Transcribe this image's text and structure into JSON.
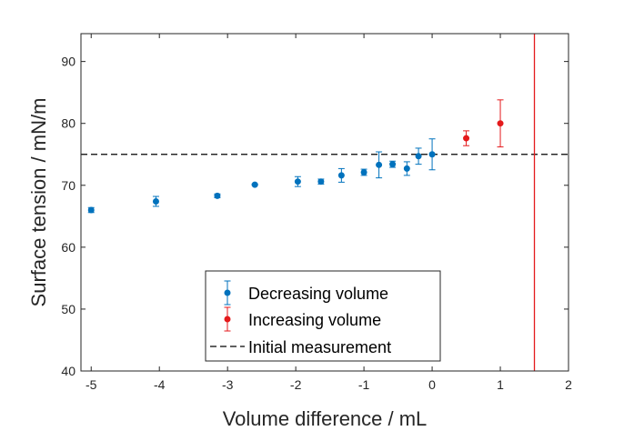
{
  "chart_data": {
    "type": "scatter",
    "xlabel": "Volume difference / mL",
    "ylabel": "Surface tension / mN/m",
    "xlim": [
      -5.15,
      2
    ],
    "ylim": [
      40,
      94.5
    ],
    "xticks": [
      -5,
      -4,
      -3,
      -2,
      -1,
      0,
      1,
      2
    ],
    "yticks": [
      40,
      50,
      60,
      70,
      80,
      90
    ],
    "grid": false,
    "legend_position": "lower-center",
    "series": [
      {
        "name": "Decreasing volume",
        "color": "#0072BD",
        "marker": "circle",
        "errorbars": true,
        "points": [
          {
            "x": -5.0,
            "y": 66.0,
            "err": 0.4
          },
          {
            "x": -4.05,
            "y": 67.4,
            "err": 0.8
          },
          {
            "x": -3.15,
            "y": 68.3,
            "err": 0.3
          },
          {
            "x": -2.6,
            "y": 70.1,
            "err": 0.1
          },
          {
            "x": -1.97,
            "y": 70.6,
            "err": 0.8
          },
          {
            "x": -1.63,
            "y": 70.6,
            "err": 0.4
          },
          {
            "x": -1.33,
            "y": 71.6,
            "err": 1.1
          },
          {
            "x": -1.0,
            "y": 72.1,
            "err": 0.5
          },
          {
            "x": -0.78,
            "y": 73.3,
            "err": 2.1
          },
          {
            "x": -0.58,
            "y": 73.4,
            "err": 0.5
          },
          {
            "x": -0.37,
            "y": 72.7,
            "err": 1.1
          },
          {
            "x": -0.2,
            "y": 74.7,
            "err": 1.3
          },
          {
            "x": 0.0,
            "y": 75.0,
            "err": 2.5
          }
        ]
      },
      {
        "name": "Increasing volume",
        "color": "#E41A1C",
        "marker": "circle",
        "errorbars": true,
        "points": [
          {
            "x": 0.5,
            "y": 77.6,
            "err": 1.2
          },
          {
            "x": 1.0,
            "y": 80.0,
            "err": 3.8
          }
        ]
      }
    ],
    "reference_lines": [
      {
        "name": "Initial measurement",
        "orientation": "horizontal",
        "value": 75,
        "style": "dashed",
        "color": "#000000"
      },
      {
        "orientation": "vertical",
        "value": 1.5,
        "style": "solid",
        "color": "#E41A1C"
      }
    ],
    "legend": [
      {
        "label": "Decreasing volume",
        "color": "#0072BD",
        "symbol": "errorbar-dot"
      },
      {
        "label": "Increasing volume",
        "color": "#E41A1C",
        "symbol": "errorbar-dot"
      },
      {
        "label": "Initial measurement",
        "color": "#000000",
        "symbol": "dashed-line"
      }
    ]
  }
}
